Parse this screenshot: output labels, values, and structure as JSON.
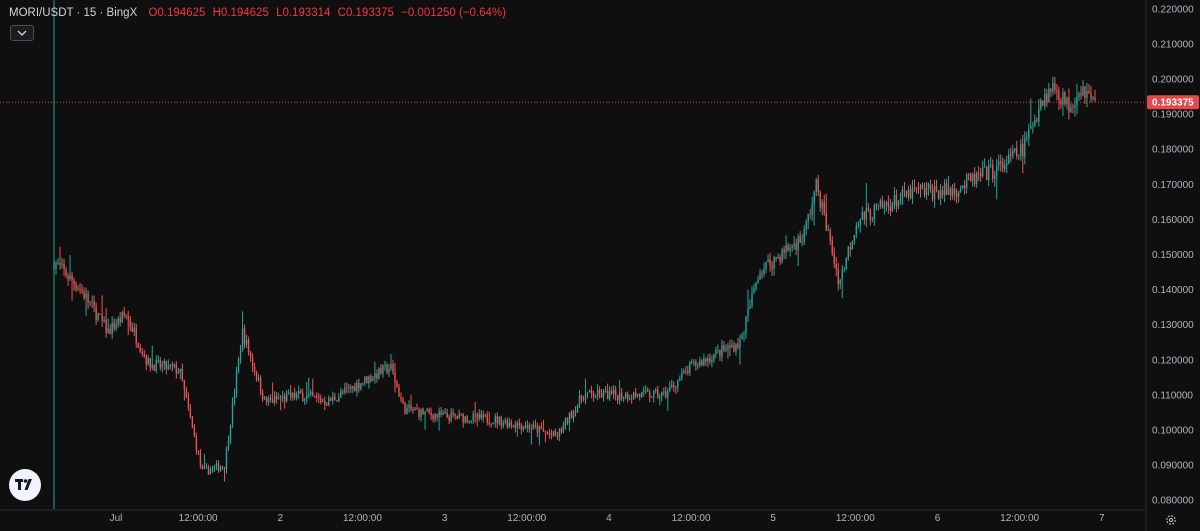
{
  "header": {
    "symbol": "MORI/USDT · 15 · BingX",
    "open": "O0.194625",
    "high": "H0.194625",
    "low": "L0.193314",
    "close": "C0.193375",
    "change": "−0.001250 (−0.64%)"
  },
  "colors": {
    "up": "#26a69a",
    "down": "#ef5350",
    "last_price_line": "#e04a4a",
    "grid": "#1c1c1c",
    "background": "#0f0f0f"
  },
  "icons": {
    "collapse": "chevron-down-icon",
    "logo": "tradingview-logo",
    "settings": "gear-icon"
  },
  "chart_data": {
    "type": "candlestick",
    "ylim": [
      0.0775,
      0.2225
    ],
    "y_ticks": [
      "0.220000",
      "0.210000",
      "0.200000",
      "0.190000",
      "0.180000",
      "0.170000",
      "0.160000",
      "0.150000",
      "0.140000",
      "0.130000",
      "0.120000",
      "0.110000",
      "0.100000",
      "0.090000",
      "0.080000"
    ],
    "x_ticks": [
      "Jul",
      "12:00:00",
      "2",
      "12:00:00",
      "3",
      "12:00:00",
      "4",
      "12:00:00",
      "5",
      "12:00:00",
      "6",
      "12:00:00",
      "7"
    ],
    "last_price": 0.193375,
    "last_price_label": "0.193375",
    "grid": false,
    "price_path": [
      {
        "x": 0.0,
        "y": 0.148
      },
      {
        "x": 0.3,
        "y": 0.14
      },
      {
        "x": 0.6,
        "y": 0.128
      },
      {
        "x": 0.8,
        "y": 0.133
      },
      {
        "x": 1.05,
        "y": 0.119
      },
      {
        "x": 1.4,
        "y": 0.117
      },
      {
        "x": 1.65,
        "y": 0.088
      },
      {
        "x": 1.9,
        "y": 0.09
      },
      {
        "x": 2.1,
        "y": 0.128
      },
      {
        "x": 2.35,
        "y": 0.108
      },
      {
        "x": 2.75,
        "y": 0.11
      },
      {
        "x": 3.05,
        "y": 0.108
      },
      {
        "x": 3.45,
        "y": 0.114
      },
      {
        "x": 3.75,
        "y": 0.118
      },
      {
        "x": 3.9,
        "y": 0.106
      },
      {
        "x": 4.3,
        "y": 0.104
      },
      {
        "x": 4.9,
        "y": 0.103
      },
      {
        "x": 5.3,
        "y": 0.101
      },
      {
        "x": 5.6,
        "y": 0.098
      },
      {
        "x": 5.9,
        "y": 0.11
      },
      {
        "x": 6.3,
        "y": 0.11
      },
      {
        "x": 6.8,
        "y": 0.11
      },
      {
        "x": 7.1,
        "y": 0.118
      },
      {
        "x": 7.4,
        "y": 0.122
      },
      {
        "x": 7.65,
        "y": 0.125
      },
      {
        "x": 7.85,
        "y": 0.145
      },
      {
        "x": 8.1,
        "y": 0.15
      },
      {
        "x": 8.35,
        "y": 0.155
      },
      {
        "x": 8.5,
        "y": 0.17
      },
      {
        "x": 8.75,
        "y": 0.142
      },
      {
        "x": 8.95,
        "y": 0.16
      },
      {
        "x": 9.2,
        "y": 0.163
      },
      {
        "x": 9.6,
        "y": 0.168
      },
      {
        "x": 10.0,
        "y": 0.168
      },
      {
        "x": 10.3,
        "y": 0.172
      },
      {
        "x": 10.55,
        "y": 0.175
      },
      {
        "x": 10.8,
        "y": 0.18
      },
      {
        "x": 11.0,
        "y": 0.194
      },
      {
        "x": 11.15,
        "y": 0.198
      },
      {
        "x": 11.3,
        "y": 0.192
      },
      {
        "x": 11.45,
        "y": 0.198
      },
      {
        "x": 11.6,
        "y": 0.193
      }
    ]
  }
}
